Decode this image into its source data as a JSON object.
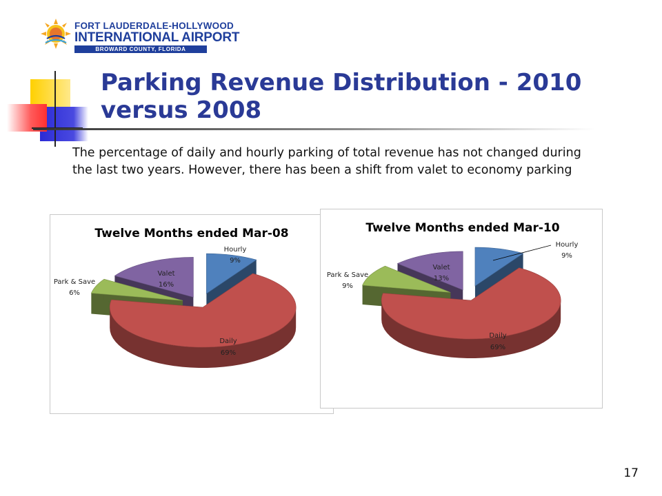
{
  "logo": {
    "line1": "FORT LAUDERDALE-HOLLYWOOD",
    "line2": "INTERNATIONAL AIRPORT",
    "line3": "BROWARD COUNTY, FLORIDA"
  },
  "slide": {
    "title": "Parking Revenue Distribution - 2010 versus 2008",
    "intro": "The percentage of daily and hourly parking of total revenue has not changed during the last two years.  However, there has been a shift from valet to economy parking",
    "page_number": "17"
  },
  "chart_data": [
    {
      "type": "pie",
      "title": "Twelve Months ended Mar-08",
      "categories": [
        "Hourly",
        "Daily",
        "Park & Save",
        "Valet"
      ],
      "values": [
        9,
        69,
        6,
        16
      ],
      "labels": [
        "9%",
        "69%",
        "6%",
        "16%"
      ],
      "colors": [
        "#4f81bd",
        "#c0504d",
        "#9bbb59",
        "#8064a2"
      ],
      "exploded": true,
      "three_d": true
    },
    {
      "type": "pie",
      "title": "Twelve Months ended Mar-10",
      "categories": [
        "Hourly",
        "Daily",
        "Park & Save",
        "Valet"
      ],
      "values": [
        9,
        69,
        9,
        13
      ],
      "labels": [
        "9%",
        "69%",
        "9%",
        "13%"
      ],
      "colors": [
        "#4f81bd",
        "#c0504d",
        "#9bbb59",
        "#8064a2"
      ],
      "exploded": true,
      "three_d": true
    }
  ]
}
